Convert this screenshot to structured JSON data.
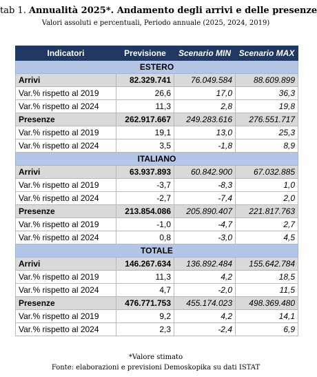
{
  "title": {
    "prefix": "tab 1. ",
    "bold": "Annualità 2025*. Andamento degli arrivi e delle presenze"
  },
  "subtitle": "Valori assoluti e percentuali, Periodo annuale (2025, 2024, 2019)",
  "table": {
    "headers": [
      "Indicatori",
      "Previsione",
      "Scenario MIN",
      "Scenario MAX"
    ],
    "sections": [
      {
        "name": "ESTERO",
        "rows": [
          {
            "type": "main",
            "label": "Arrivi",
            "prev": "82.329.741",
            "min": "76.049.584",
            "max": "88.609.899"
          },
          {
            "type": "sub",
            "label": "Var.% rispetto al 2019",
            "prev": "26,6",
            "min": "17,0",
            "max": "36,3"
          },
          {
            "type": "sub",
            "label": "Var.% rispetto al 2024",
            "prev": "11,3",
            "min": "2,8",
            "max": "19,8"
          },
          {
            "type": "main",
            "label": "Presenze",
            "prev": "262.917.667",
            "min": "249.283.616",
            "max": "276.551.717"
          },
          {
            "type": "sub",
            "label": "Var.% rispetto al 2019",
            "prev": "19,1",
            "min": "13,0",
            "max": "25,3"
          },
          {
            "type": "sub",
            "label": "Var.% rispetto al 2024",
            "prev": "3,5",
            "min": "-1,8",
            "max": "8,9"
          }
        ]
      },
      {
        "name": "ITALIANO",
        "rows": [
          {
            "type": "main",
            "label": "Arrivi",
            "prev": "63.937.893",
            "min": "60.842.900",
            "max": "67.032.885"
          },
          {
            "type": "sub",
            "label": "Var.% rispetto al 2019",
            "prev": "-3,7",
            "min": "-8,3",
            "max": "1,0"
          },
          {
            "type": "sub",
            "label": "Var.% rispetto al 2024",
            "prev": "-2,7",
            "min": "-7,4",
            "max": "2,0"
          },
          {
            "type": "main",
            "label": "Presenze",
            "prev": "213.854.086",
            "min": "205.890.407",
            "max": "221.817.763"
          },
          {
            "type": "sub",
            "label": "Var.% rispetto al 2019",
            "prev": "-1,0",
            "min": "-4,7",
            "max": "2,7"
          },
          {
            "type": "sub",
            "label": "Var.% rispetto al 2024",
            "prev": "0,8",
            "min": "-3,0",
            "max": "4,5"
          }
        ]
      },
      {
        "name": "TOTALE",
        "rows": [
          {
            "type": "main",
            "label": "Arrivi",
            "prev": "146.267.634",
            "min": "136.892.484",
            "max": "155.642.784"
          },
          {
            "type": "sub",
            "label": "Var.% rispetto al 2019",
            "prev": "11,3",
            "min": "4,2",
            "max": "18,5"
          },
          {
            "type": "sub",
            "label": "Var.% rispetto al 2024",
            "prev": "4,7",
            "min": "-2,0",
            "max": "11,5"
          },
          {
            "type": "main",
            "label": "Presenze",
            "prev": "476.771.753",
            "min": "455.174.023",
            "max": "498.369.480"
          },
          {
            "type": "sub",
            "label": "Var.% rispetto al 2019",
            "prev": "9,2",
            "min": "4,2",
            "max": "14,1"
          },
          {
            "type": "sub",
            "label": "Var.% rispetto al 2024",
            "prev": "2,3",
            "min": "-2,4",
            "max": "6,9"
          }
        ]
      }
    ]
  },
  "note": "*Valore stimato",
  "source": "Fonte: elaborazioni e previsioni Demoskopika su dati ISTAT",
  "colors": {
    "header_bg": "#1f3864",
    "section_bg": "#b4c6e7",
    "main_row_bg": "#d9d9d9"
  }
}
